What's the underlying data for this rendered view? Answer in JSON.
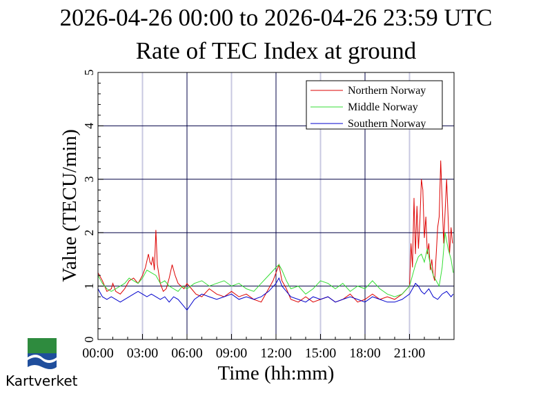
{
  "header": {
    "time_range": "2026-04-26 00:00 to 2026-04-26 23:59 UTC",
    "title": "Rate of TEC Index at ground"
  },
  "logo": {
    "text": "Kartverket",
    "icon": "kartverket-logo-icon"
  },
  "chart_data": {
    "type": "line",
    "xlabel": "Time (hh:mm)",
    "ylabel": "Value (TECU/min)",
    "xlim": [
      0,
      24
    ],
    "ylim": [
      0,
      5
    ],
    "x_ticks": [
      0,
      3,
      6,
      9,
      12,
      15,
      18,
      21
    ],
    "x_tick_labels": [
      "00:00",
      "03:00",
      "06:00",
      "09:00",
      "12:00",
      "15:00",
      "18:00",
      "21:00"
    ],
    "y_ticks": [
      0,
      1,
      2,
      3,
      4,
      5
    ],
    "y_tick_labels": [
      "0",
      "1",
      "2",
      "3",
      "4",
      "5"
    ],
    "grid": true,
    "legend_position": "top-right",
    "series": [
      {
        "name": "Northern Norway",
        "color": "#dd0000",
        "x": [
          0,
          0.3,
          0.6,
          0.9,
          1.0,
          1.2,
          1.5,
          1.8,
          2.1,
          2.4,
          2.7,
          3.0,
          3.2,
          3.4,
          3.5,
          3.6,
          3.7,
          3.8,
          3.9,
          4.0,
          4.2,
          4.4,
          4.6,
          4.8,
          5.0,
          5.2,
          5.4,
          5.6,
          5.8,
          6.0,
          6.3,
          6.6,
          7.0,
          7.5,
          8.0,
          8.5,
          9.0,
          9.5,
          10.0,
          10.5,
          11.0,
          11.5,
          11.8,
          12.0,
          12.2,
          12.4,
          12.7,
          13.0,
          13.5,
          14.0,
          14.5,
          15.0,
          15.5,
          16.0,
          16.5,
          17.0,
          17.5,
          18.0,
          18.5,
          19.0,
          19.5,
          20.0,
          20.5,
          21.0,
          21.1,
          21.2,
          21.3,
          21.4,
          21.5,
          21.6,
          21.7,
          21.8,
          21.9,
          22.0,
          22.1,
          22.2,
          22.3,
          22.4,
          22.5,
          22.6,
          22.7,
          22.8,
          22.9,
          23.0,
          23.1,
          23.2,
          23.3,
          23.4,
          23.5,
          23.6,
          23.7,
          23.8,
          23.9
        ],
        "values": [
          1.25,
          1.1,
          0.9,
          0.95,
          1.05,
          0.9,
          0.85,
          0.95,
          1.1,
          1.15,
          1.05,
          1.2,
          1.35,
          1.6,
          1.45,
          1.4,
          1.55,
          1.3,
          2.05,
          1.4,
          1.05,
          0.9,
          0.95,
          1.15,
          1.4,
          1.2,
          1.05,
          1.0,
          0.95,
          1.05,
          0.95,
          0.85,
          0.8,
          0.95,
          0.85,
          0.8,
          0.9,
          0.8,
          0.85,
          0.75,
          0.7,
          0.95,
          1.1,
          1.25,
          1.4,
          1.1,
          0.95,
          0.75,
          0.7,
          0.8,
          0.7,
          0.75,
          0.8,
          0.7,
          0.75,
          0.85,
          0.7,
          0.75,
          0.85,
          0.75,
          0.8,
          0.75,
          0.85,
          1.0,
          1.8,
          1.35,
          2.65,
          1.6,
          2.5,
          1.7,
          2.2,
          3.0,
          2.8,
          1.9,
          2.3,
          1.6,
          1.8,
          1.3,
          1.5,
          1.2,
          1.1,
          1.6,
          2.1,
          2.3,
          3.35,
          2.6,
          1.8,
          2.4,
          3.0,
          2.3,
          1.6,
          2.1,
          1.8
        ]
      },
      {
        "name": "Middle Norway",
        "color": "#33dd33",
        "x": [
          0,
          0.3,
          0.6,
          0.9,
          1.2,
          1.5,
          1.8,
          2.1,
          2.4,
          2.7,
          3.0,
          3.3,
          3.6,
          3.9,
          4.2,
          4.5,
          4.8,
          5.1,
          5.4,
          5.7,
          6.0,
          6.5,
          7.0,
          7.5,
          8.0,
          8.5,
          9.0,
          9.5,
          10.0,
          10.5,
          11.0,
          11.5,
          12.0,
          12.2,
          12.4,
          12.7,
          13.0,
          13.5,
          14.0,
          14.5,
          15.0,
          15.5,
          16.0,
          16.5,
          17.0,
          17.5,
          18.0,
          18.5,
          19.0,
          19.5,
          20.0,
          20.5,
          21.0,
          21.2,
          21.4,
          21.6,
          21.8,
          22.0,
          22.2,
          22.4,
          22.6,
          22.8,
          23.0,
          23.2,
          23.4,
          23.6,
          23.8,
          23.95
        ],
        "values": [
          1.2,
          1.05,
          0.95,
          0.9,
          0.95,
          1.0,
          1.05,
          1.15,
          1.1,
          1.05,
          1.15,
          1.3,
          1.25,
          1.2,
          1.05,
          1.1,
          1.0,
          0.95,
          0.9,
          1.0,
          0.95,
          1.05,
          1.1,
          1.0,
          1.05,
          1.1,
          1.0,
          1.05,
          0.95,
          0.9,
          1.05,
          1.2,
          1.35,
          1.4,
          1.3,
          1.1,
          0.95,
          1.0,
          0.85,
          0.95,
          1.1,
          1.05,
          0.95,
          1.05,
          0.9,
          1.0,
          0.95,
          1.1,
          0.95,
          0.85,
          0.8,
          0.85,
          1.0,
          1.2,
          1.4,
          1.55,
          1.6,
          1.45,
          1.7,
          1.4,
          1.2,
          1.1,
          1.0,
          1.35,
          2.0,
          1.7,
          1.5,
          1.25
        ]
      },
      {
        "name": "Southern Norway",
        "color": "#0000cc",
        "x": [
          0,
          0.3,
          0.6,
          0.9,
          1.2,
          1.5,
          1.8,
          2.1,
          2.4,
          2.7,
          3.0,
          3.3,
          3.6,
          3.9,
          4.2,
          4.5,
          4.8,
          5.1,
          5.4,
          5.7,
          6.0,
          6.5,
          7.0,
          7.5,
          8.0,
          8.5,
          9.0,
          9.5,
          10.0,
          10.5,
          11.0,
          11.5,
          12.0,
          12.2,
          12.4,
          12.7,
          13.0,
          13.5,
          14.0,
          14.5,
          15.0,
          15.5,
          16.0,
          16.5,
          17.0,
          17.5,
          18.0,
          18.5,
          19.0,
          19.5,
          20.0,
          20.5,
          21.0,
          21.2,
          21.4,
          21.6,
          21.8,
          22.0,
          22.3,
          22.6,
          22.9,
          23.2,
          23.5,
          23.8,
          23.95
        ],
        "values": [
          0.95,
          0.8,
          0.75,
          0.8,
          0.75,
          0.7,
          0.75,
          0.8,
          0.85,
          0.9,
          0.85,
          0.8,
          0.85,
          0.8,
          0.75,
          0.8,
          0.7,
          0.8,
          0.75,
          0.65,
          0.55,
          0.75,
          0.85,
          0.8,
          0.75,
          0.8,
          0.85,
          0.75,
          0.8,
          0.75,
          0.8,
          0.9,
          1.05,
          1.15,
          1.0,
          0.9,
          0.8,
          0.75,
          0.7,
          0.8,
          0.75,
          0.8,
          0.7,
          0.75,
          0.8,
          0.75,
          0.7,
          0.8,
          0.75,
          0.7,
          0.7,
          0.75,
          0.85,
          0.95,
          1.05,
          1.0,
          0.9,
          0.85,
          0.95,
          0.8,
          0.75,
          0.85,
          0.9,
          0.8,
          0.85
        ]
      }
    ]
  }
}
